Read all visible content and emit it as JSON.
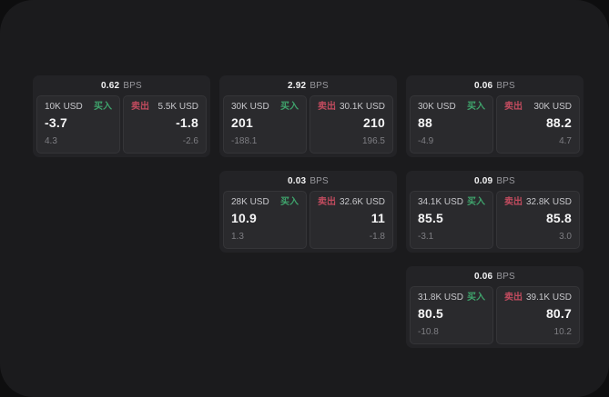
{
  "labels": {
    "bps": "BPS",
    "buy": "买入",
    "sell": "卖出"
  },
  "colors": {
    "backdrop": "#0e0e0f",
    "surface": "#1b1b1d",
    "card": "#232326",
    "panel": "#2a2a2d",
    "buy": "#3fa36c",
    "sell": "#c04b5e"
  },
  "cards": [
    {
      "bps": "0.62",
      "buy": {
        "size": "10K USD",
        "value": "-3.7",
        "delta": "4.3"
      },
      "sell": {
        "size": "5.5K USD",
        "value": "-1.8",
        "delta": "-2.6"
      }
    },
    {
      "bps": "2.92",
      "buy": {
        "size": "30K USD",
        "value": "201",
        "delta": "-188.1"
      },
      "sell": {
        "size": "30.1K USD",
        "value": "210",
        "delta": "196.5"
      }
    },
    {
      "bps": "0.06",
      "buy": {
        "size": "30K USD",
        "value": "88",
        "delta": "-4.9"
      },
      "sell": {
        "size": "30K USD",
        "value": "88.2",
        "delta": "4.7"
      }
    },
    {
      "bps": "0.03",
      "buy": {
        "size": "28K USD",
        "value": "10.9",
        "delta": "1.3"
      },
      "sell": {
        "size": "32.6K USD",
        "value": "11",
        "delta": "-1.8"
      }
    },
    {
      "bps": "0.09",
      "buy": {
        "size": "34.1K USD",
        "value": "85.5",
        "delta": "-3.1"
      },
      "sell": {
        "size": "32.8K USD",
        "value": "85.8",
        "delta": "3.0"
      }
    },
    {
      "bps": "0.06",
      "buy": {
        "size": "31.8K USD",
        "value": "80.5",
        "delta": "-10.8"
      },
      "sell": {
        "size": "39.1K USD",
        "value": "80.7",
        "delta": "10.2"
      }
    }
  ]
}
